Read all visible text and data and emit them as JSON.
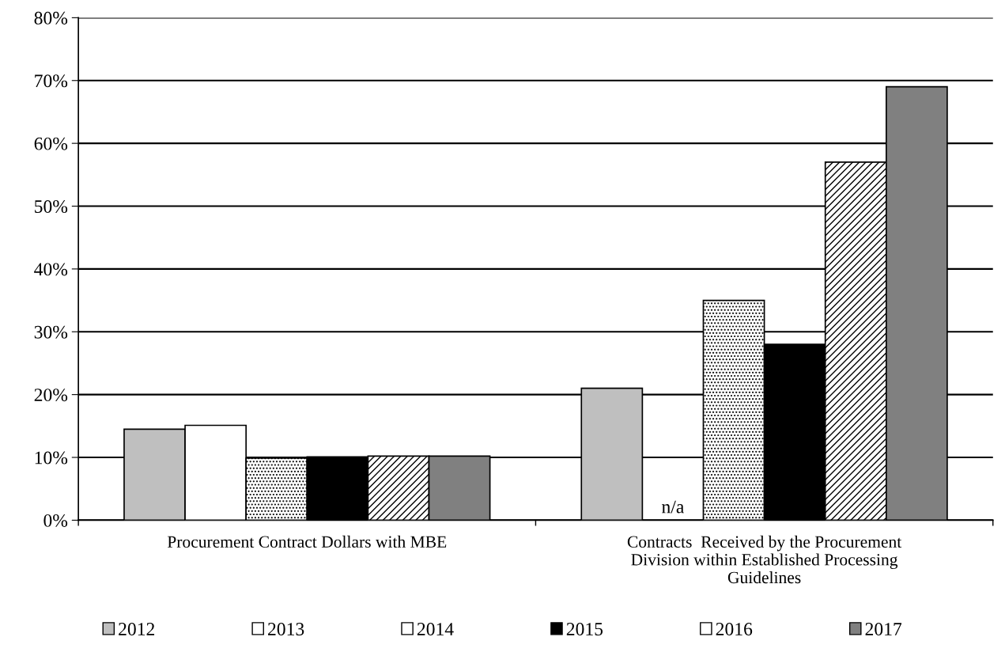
{
  "chart_data": {
    "type": "bar",
    "categories": [
      "Procurement Contract Dollars with MBE",
      "Contracts  Received by the Procurement Division within Established Processing Guidelines"
    ],
    "series": [
      {
        "name": "2012",
        "color": "#bfbfbf",
        "values": [
          14.5,
          21
        ]
      },
      {
        "name": "2013",
        "color": "#ffffff",
        "values": [
          15.1,
          null
        ]
      },
      {
        "name": "2014",
        "color": "#ffffff",
        "values": [
          9.9,
          35
        ]
      },
      {
        "name": "2015",
        "color": "#000000",
        "values": [
          10.1,
          28
        ]
      },
      {
        "name": "2016",
        "color": "#ffffff",
        "values": [
          10.2,
          57
        ]
      },
      {
        "name": "2017",
        "color": "#808080",
        "values": [
          10.2,
          69
        ]
      }
    ],
    "ylim": [
      0,
      80
    ],
    "yticks": [
      {
        "value": 0,
        "label": "0%"
      },
      {
        "value": 10,
        "label": "10%"
      },
      {
        "value": 20,
        "label": "20%"
      },
      {
        "value": 30,
        "label": "30%"
      },
      {
        "value": 40,
        "label": "40%"
      },
      {
        "value": 50,
        "label": "50%"
      },
      {
        "value": 60,
        "label": "60%"
      },
      {
        "value": 70,
        "label": "70%"
      },
      {
        "value": 80,
        "label": "80%"
      }
    ],
    "annotations": [
      "n/a"
    ],
    "grid": "y",
    "legend": "bottom"
  }
}
